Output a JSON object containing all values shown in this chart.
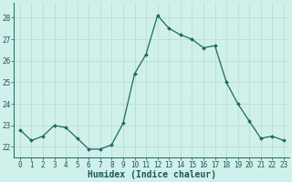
{
  "x": [
    0,
    1,
    2,
    3,
    4,
    5,
    6,
    7,
    8,
    9,
    10,
    11,
    12,
    13,
    14,
    15,
    16,
    17,
    18,
    19,
    20,
    21,
    22,
    23
  ],
  "y": [
    22.8,
    22.3,
    22.5,
    23.0,
    22.9,
    22.4,
    21.9,
    21.9,
    22.1,
    23.1,
    25.4,
    26.3,
    28.1,
    27.5,
    27.2,
    27.0,
    26.6,
    26.7,
    25.0,
    24.0,
    23.2,
    22.4,
    22.5,
    22.3
  ],
  "line_color": "#1a6b5a",
  "marker": "D",
  "marker_size": 2.0,
  "bg_color": "#d0f0ec",
  "grid_color": "#b8d8d4",
  "xlabel": "Humidex (Indice chaleur)",
  "ylim": [
    21.5,
    28.7
  ],
  "yticks": [
    22,
    23,
    24,
    25,
    26,
    27,
    28
  ],
  "xticks": [
    0,
    1,
    2,
    3,
    4,
    5,
    6,
    7,
    8,
    9,
    10,
    11,
    12,
    13,
    14,
    15,
    16,
    17,
    18,
    19,
    20,
    21,
    22,
    23
  ],
  "tick_fontsize": 5.5,
  "xlabel_fontsize": 7.0
}
